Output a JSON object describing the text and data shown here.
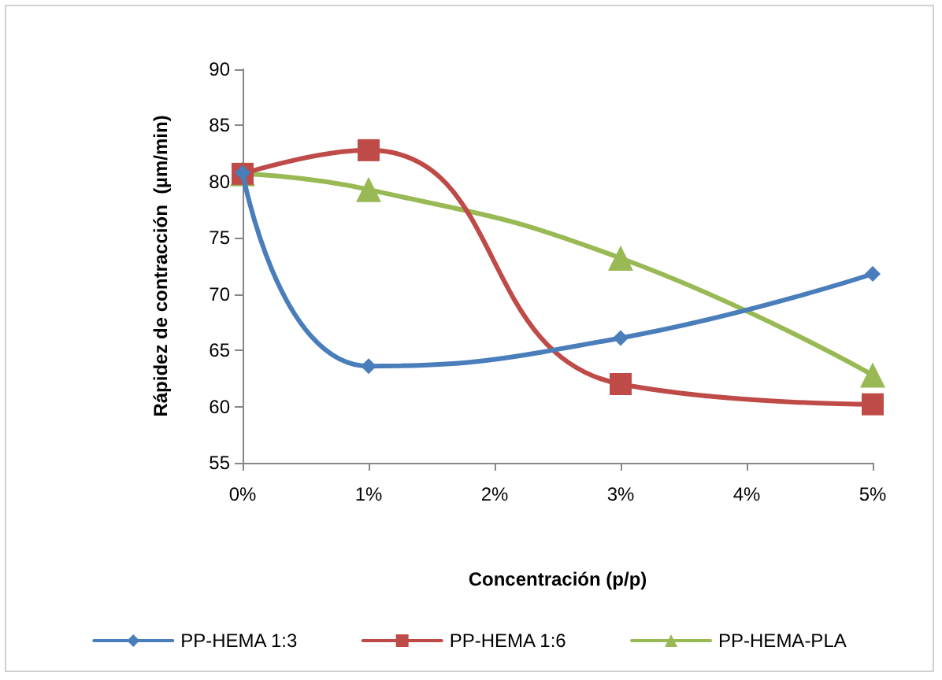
{
  "chart_data": {
    "type": "line",
    "xlabel": "Concentración (p/p)",
    "ylabel": "Rápidez de contracción  (µm/min)",
    "x": [
      0,
      1,
      3,
      5
    ],
    "series": [
      {
        "name": "PP-HEMA 1:3",
        "color": "#4a7ebb",
        "marker": "diamond",
        "values": [
          80.8,
          63.6,
          66.1,
          71.8
        ]
      },
      {
        "name": "PP-HEMA 1:6",
        "color": "#be4b48",
        "marker": "square",
        "values": [
          80.7,
          82.8,
          62.0,
          60.2
        ]
      },
      {
        "name": "PP-HEMA-PLA",
        "color": "#98b954",
        "marker": "triangle",
        "values": [
          80.7,
          79.3,
          73.2,
          62.8
        ]
      }
    ],
    "xlim": [
      0,
      5
    ],
    "xticks": [
      {
        "value": 0,
        "label": "0%"
      },
      {
        "value": 1,
        "label": "1%"
      },
      {
        "value": 2,
        "label": "2%"
      },
      {
        "value": 3,
        "label": "3%"
      },
      {
        "value": 4,
        "label": "4%"
      },
      {
        "value": 5,
        "label": "5%"
      }
    ],
    "ylim": [
      55,
      90
    ],
    "yticks": [
      55,
      60,
      65,
      70,
      75,
      80,
      85,
      90
    ],
    "grid": false,
    "legend": "bottom",
    "line_style": "solid"
  }
}
